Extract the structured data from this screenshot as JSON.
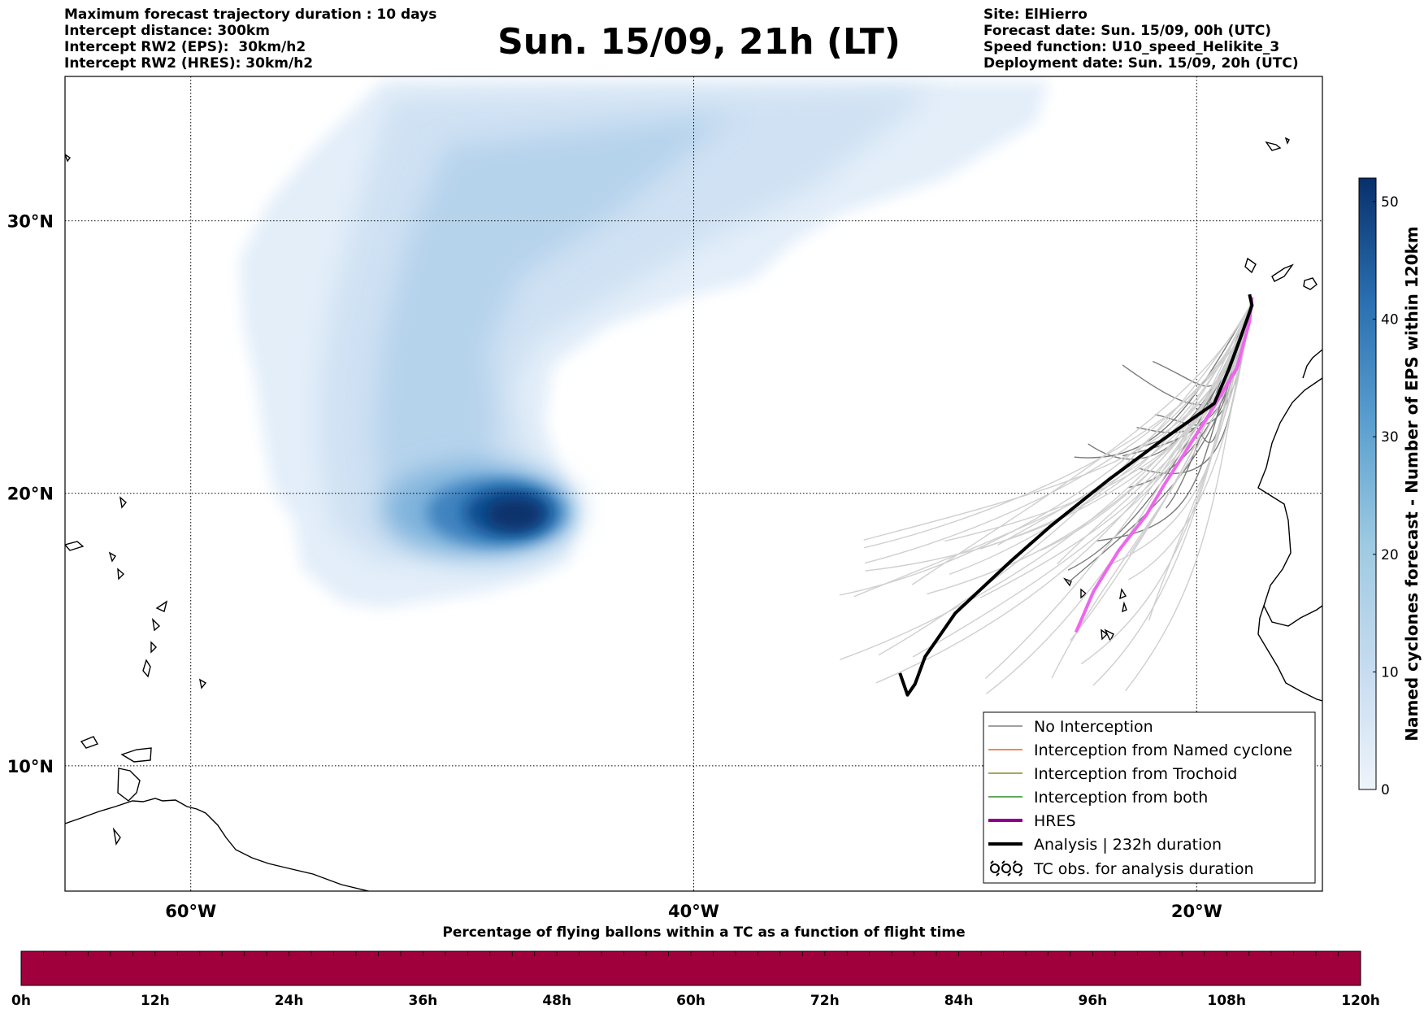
{
  "header": {
    "left_lines": [
      "Maximum forecast trajectory duration : 10 days",
      "Intercept distance: 300km",
      "Intercept RW2 (EPS):  30km/h2",
      "Intercept RW2 (HRES): 30km/h2"
    ],
    "title": "Sun. 15/09, 21h (LT)",
    "right_lines": [
      "Site: ElHierro",
      "Forecast date: Sun. 15/09, 00h (UTC)",
      "Speed function: U10_speed_Helikite_3",
      "Deployment date: Sun. 15/09, 20h (UTC)"
    ]
  },
  "map": {
    "lat_labels": [
      "30°N",
      "20°N",
      "10°N"
    ],
    "lon_labels": [
      "60°W",
      "40°W",
      "20°W"
    ],
    "lat_values": [
      30,
      20,
      10
    ],
    "lon_values": [
      -60,
      -40,
      -20
    ],
    "extent": {
      "lon_min": -65,
      "lon_max": -15,
      "lat_min": 5.4,
      "lat_max": 35.3
    },
    "grid": true
  },
  "legend": {
    "position": "lower-right",
    "items": [
      {
        "label": "No Interception",
        "color": "#808080",
        "style": "thin-line"
      },
      {
        "label": "Interception from Named cyclone",
        "color": "#e8602c",
        "style": "thin-line"
      },
      {
        "label": "Interception from Trochoid",
        "color": "#8a8a2a",
        "style": "thin-line"
      },
      {
        "label": "Interception from both",
        "color": "#2e8b2e",
        "style": "thin-line"
      },
      {
        "label": "HRES",
        "color": "#8b008b",
        "style": "thick-line"
      },
      {
        "label": "Analysis | 232h duration",
        "color": "#000000",
        "style": "thick-line"
      },
      {
        "label": "TC obs. for analysis duration",
        "color": "#000000",
        "style": "tc-symbol"
      }
    ]
  },
  "colorbar_right": {
    "label": "Named cyclones forecast - Number of EPS within 120km",
    "ticks": [
      "0",
      "10",
      "20",
      "30",
      "40",
      "50"
    ],
    "tick_values": [
      0,
      10,
      20,
      30,
      40,
      50
    ],
    "max": 52,
    "colors": [
      "#e6f0fa",
      "#c6dbef",
      "#9ecae1",
      "#6baed6",
      "#3182bd",
      "#08519c",
      "#08306b"
    ]
  },
  "colorbar_bottom": {
    "title": "Percentage of flying ballons within a TC as a function of flight time",
    "ticks": [
      "0h",
      "12h",
      "24h",
      "36h",
      "48h",
      "60h",
      "72h",
      "84h",
      "96h",
      "108h",
      "120h"
    ],
    "fill_color": "#a0003c"
  },
  "chart_data": {
    "type": "heatmap",
    "description_units": "degrees lon/lat",
    "density_peak": {
      "lon": -46,
      "lat": 19.5,
      "value_approx": 52
    },
    "analysis_track": [
      [
        -17.9,
        27.3
      ],
      [
        -17.8,
        26.9
      ],
      [
        -18.3,
        25.6
      ],
      [
        -18.7,
        24.6
      ],
      [
        -19.3,
        23.3
      ],
      [
        -21.3,
        22
      ],
      [
        -23.5,
        20.5
      ],
      [
        -25.8,
        18.8
      ],
      [
        -27.4,
        17.5
      ],
      [
        -29.6,
        15.6
      ],
      [
        -30.8,
        14
      ],
      [
        -31.2,
        13
      ],
      [
        -31.5,
        12.6
      ],
      [
        -31.8,
        13.4
      ]
    ],
    "hres_track": [
      [
        -17.8,
        27.2
      ],
      [
        -17.9,
        26.3
      ],
      [
        -18.4,
        24.6
      ],
      [
        -19.3,
        23.2
      ],
      [
        -20.6,
        21.3
      ],
      [
        -21.3,
        20.3
      ],
      [
        -22,
        19.2
      ],
      [
        -23.1,
        17.9
      ],
      [
        -24.1,
        16.4
      ],
      [
        -24.8,
        14.9
      ]
    ]
  }
}
